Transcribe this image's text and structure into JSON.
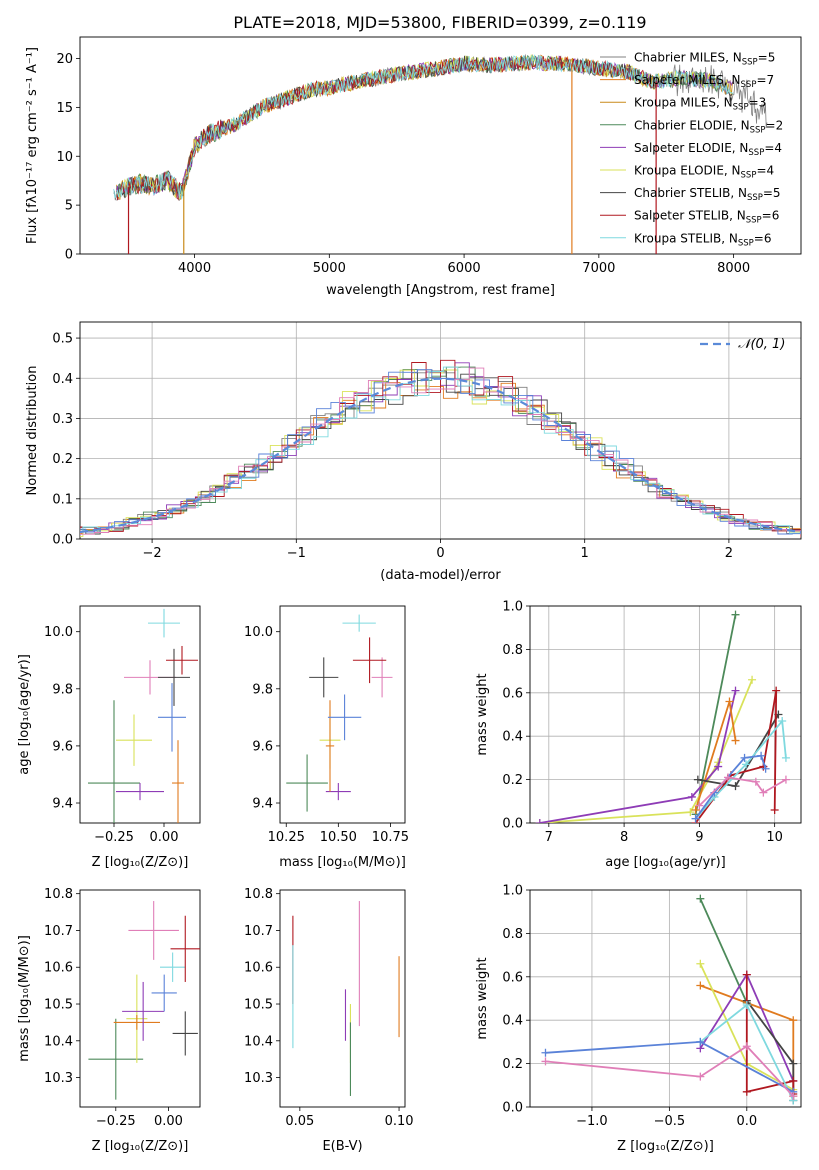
{
  "title": "PLATE=2018, MJD=53800, FIBERID=0399, z=0.119",
  "colors": {
    "Chabrier MILES": "#808080",
    "Salpeter MILES": "#e07b1f",
    "Kroupa MILES": "#c98a1a",
    "Chabrier ELODIE": "#4d8a5a",
    "Salpeter ELODIE": "#8e3cb6",
    "Kroupa ELODIE": "#d9e25a",
    "Chabrier STELIB": "#444444",
    "Salpeter STELIB": "#b01820",
    "Kroupa STELIB": "#7fd9df",
    "blue": "#5a82d8",
    "pink": "#e07fb8",
    "gaussian": "#5a8ad8",
    "grid": "#b0b0b0"
  },
  "chart_data": [
    {
      "type": "line",
      "xlabel": "wavelength [Angstrom, rest frame]",
      "ylabel": "Flux [fλ10⁻¹⁷ erg cm⁻² s⁻¹ A⁻¹]",
      "xlim": [
        3150,
        8500
      ],
      "ylim": [
        0,
        22.2
      ],
      "xticks": [
        4000,
        5000,
        6000,
        7000,
        8000
      ],
      "yticks": [
        0,
        5,
        10,
        15,
        20
      ],
      "grid": false,
      "legend_position": "right",
      "legend": [
        {
          "label": "Chabrier MILES, N",
          "sub": "SSP",
          "suffix": "=5"
        },
        {
          "label": "Salpeter MILES, N",
          "sub": "SSP",
          "suffix": "=7"
        },
        {
          "label": "Kroupa MILES, N",
          "sub": "SSP",
          "suffix": "=3"
        },
        {
          "label": "Chabrier ELODIE, N",
          "sub": "SSP",
          "suffix": "=2"
        },
        {
          "label": "Salpeter ELODIE, N",
          "sub": "SSP",
          "suffix": "=4"
        },
        {
          "label": "Kroupa ELODIE, N",
          "sub": "SSP",
          "suffix": "=4"
        },
        {
          "label": "Chabrier STELIB, N",
          "sub": "SSP",
          "suffix": "=5"
        },
        {
          "label": "Salpeter STELIB, N",
          "sub": "SSP",
          "suffix": "=6"
        },
        {
          "label": "Kroupa STELIB, N",
          "sub": "SSP",
          "suffix": "=6"
        }
      ],
      "spectrum_shape": {
        "x": [
          3400,
          3500,
          3600,
          3700,
          3800,
          3900,
          3950,
          4000,
          4100,
          4200,
          4300,
          4500,
          4700,
          4860,
          5000,
          5200,
          5500,
          5800,
          6000,
          6200,
          6500,
          6800,
          7000,
          7200,
          7400,
          7600,
          7800,
          8000,
          8100,
          8250
        ],
        "y": [
          6.2,
          6.8,
          7.2,
          7.0,
          7.6,
          6.2,
          8.5,
          11.0,
          12.2,
          12.8,
          13.2,
          15.0,
          16.0,
          16.8,
          17.0,
          17.6,
          18.4,
          19.0,
          19.5,
          19.3,
          19.6,
          19.4,
          19.0,
          18.7,
          17.6,
          18.0,
          17.8,
          16.8,
          16.0,
          14.0
        ]
      }
    },
    {
      "type": "histogram",
      "xlabel": "(data-model)/error",
      "ylabel": "Normed distribution",
      "xlim": [
        -2.5,
        2.5
      ],
      "ylim": [
        0,
        0.54
      ],
      "xticks": [
        -2,
        -1,
        0,
        1,
        2
      ],
      "xtick_labels": [
        "−2",
        "−1",
        "0",
        "1",
        "2"
      ],
      "yticks": [
        0.0,
        0.1,
        0.2,
        0.3,
        0.4,
        0.5
      ],
      "grid": true,
      "bin_width": 0.1,
      "legend": "𝒩(0, 1)",
      "legend_position": "top-right"
    },
    {
      "type": "errorbar",
      "xlabel": "Z [log₁₀(Z/Z⊙)]",
      "ylabel": "age  [log₁₀(age/yr)]",
      "xlim": [
        -0.42,
        0.18
      ],
      "ylim": [
        9.33,
        10.09
      ],
      "xticks": [
        -0.25,
        0.0
      ],
      "xtick_labels": [
        "−0.25",
        "0.00"
      ],
      "yticks": [
        9.4,
        9.6,
        9.8,
        10.0
      ],
      "points": [
        {
          "model": "Chabrier ELODIE",
          "x": -0.25,
          "xerr": 0.13,
          "y": 9.47,
          "yerr": 0.29
        },
        {
          "model": "Kroupa ELODIE",
          "x": -0.15,
          "xerr": 0.09,
          "y": 9.62,
          "yerr": 0.09
        },
        {
          "model": "Salpeter ELODIE",
          "x": -0.12,
          "xerr": 0.12,
          "y": 9.44,
          "yerr": 0.03
        },
        {
          "model": "pink",
          "x": -0.07,
          "xerr": 0.13,
          "y": 9.84,
          "yerr": 0.06
        },
        {
          "model": "Kroupa STELIB",
          "x": 0.0,
          "xerr": 0.08,
          "y": 10.03,
          "yerr": 0.05
        },
        {
          "model": "blue",
          "x": 0.04,
          "xerr": 0.07,
          "y": 9.7,
          "yerr": 0.12
        },
        {
          "model": "Salpeter MILES",
          "x": 0.07,
          "xerr": 0.03,
          "y": 9.47,
          "yerr": 0.15
        },
        {
          "model": "Chabrier STELIB",
          "x": 0.05,
          "xerr": 0.08,
          "y": 9.84,
          "yerr": 0.1
        },
        {
          "model": "Salpeter STELIB",
          "x": 0.09,
          "xerr": 0.08,
          "y": 9.9,
          "yerr": 0.05
        }
      ]
    },
    {
      "type": "errorbar",
      "xlabel": "mass [log₁₀(M/M⊙)]",
      "ylabel": "",
      "xlim": [
        10.22,
        10.82
      ],
      "ylim": [
        9.33,
        10.09
      ],
      "xticks": [
        10.25,
        10.5,
        10.75
      ],
      "xtick_labels": [
        "10.25",
        "10.50",
        "10.75"
      ],
      "yticks": [
        9.4,
        9.6,
        9.8,
        10.0
      ],
      "points": [
        {
          "model": "Chabrier ELODIE",
          "x": 10.35,
          "xerr": 0.1,
          "y": 9.47,
          "yerr": 0.1
        },
        {
          "model": "Kroupa ELODIE",
          "x": 10.46,
          "xerr": 0.05,
          "y": 9.62,
          "yerr": 0.1
        },
        {
          "model": "Salpeter ELODIE",
          "x": 10.5,
          "xerr": 0.06,
          "y": 9.44,
          "yerr": 0.03
        },
        {
          "model": "Salpeter MILES",
          "x": 10.46,
          "xerr": 0.02,
          "y": 9.6,
          "yerr": 0.16
        },
        {
          "model": "pink",
          "x": 10.71,
          "xerr": 0.05,
          "y": 9.84,
          "yerr": 0.07
        },
        {
          "model": "Kroupa STELIB",
          "x": 10.6,
          "xerr": 0.08,
          "y": 10.03,
          "yerr": 0.03
        },
        {
          "model": "blue",
          "x": 10.53,
          "xerr": 0.08,
          "y": 9.7,
          "yerr": 0.08
        },
        {
          "model": "Chabrier STELIB",
          "x": 10.43,
          "xerr": 0.07,
          "y": 9.84,
          "yerr": 0.07
        },
        {
          "model": "Salpeter STELIB",
          "x": 10.65,
          "xerr": 0.08,
          "y": 9.9,
          "yerr": 0.08
        }
      ]
    },
    {
      "type": "line",
      "xlabel": "age  [log₁₀(age/yr)]",
      "ylabel": "mass weight",
      "xlim": [
        6.75,
        10.35
      ],
      "ylim": [
        0,
        1
      ],
      "xticks": [
        7,
        8,
        9,
        10
      ],
      "yticks": [
        0.0,
        0.2,
        0.4,
        0.6,
        0.8,
        1.0
      ],
      "grid": true,
      "series": [
        {
          "model": "Chabrier ELODIE",
          "x": [
            8.95,
            9.48
          ],
          "y": [
            0.04,
            0.96
          ]
        },
        {
          "model": "Kroupa ELODIE",
          "x": [
            6.88,
            8.88,
            9.25,
            9.7
          ],
          "y": [
            0.0,
            0.05,
            0.28,
            0.66
          ]
        },
        {
          "model": "Salpeter ELODIE",
          "x": [
            6.88,
            8.9,
            9.25,
            9.48
          ],
          "y": [
            0.0,
            0.12,
            0.26,
            0.61
          ]
        },
        {
          "model": "Salpeter MILES",
          "x": [
            8.95,
            9.4,
            9.48
          ],
          "y": [
            0.06,
            0.56,
            0.38
          ]
        },
        {
          "model": "Chabrier STELIB",
          "x": [
            8.98,
            9.48,
            10.05
          ],
          "y": [
            0.2,
            0.17,
            0.5
          ]
        },
        {
          "model": "Salpeter STELIB",
          "x": [
            8.95,
            9.42,
            9.85,
            10.02,
            10.0
          ],
          "y": [
            0.0,
            0.22,
            0.26,
            0.61,
            0.06
          ]
        },
        {
          "model": "Kroupa STELIB",
          "x": [
            8.95,
            9.2,
            9.62,
            10.1,
            10.15
          ],
          "y": [
            0.02,
            0.12,
            0.27,
            0.47,
            0.3
          ]
        },
        {
          "model": "blue",
          "x": [
            8.95,
            9.2,
            9.6,
            9.82,
            9.88
          ],
          "y": [
            0.02,
            0.14,
            0.3,
            0.31,
            0.25
          ]
        },
        {
          "model": "pink",
          "x": [
            9.0,
            9.38,
            9.75,
            9.85,
            10.15
          ],
          "y": [
            0.08,
            0.21,
            0.19,
            0.14,
            0.2
          ]
        }
      ]
    },
    {
      "type": "errorbar",
      "xlabel": "Z [log₁₀(Z/Z⊙)]",
      "ylabel": "mass [log₁₀(M/M⊙)]",
      "xlim": [
        -0.42,
        0.15
      ],
      "ylim": [
        10.22,
        10.81
      ],
      "xticks": [
        -0.25,
        0.0
      ],
      "xtick_labels": [
        "−0.25",
        "0.00"
      ],
      "yticks": [
        10.3,
        10.4,
        10.5,
        10.6,
        10.7,
        10.8
      ],
      "points": [
        {
          "model": "Chabrier ELODIE",
          "x": -0.25,
          "xerr": 0.13,
          "y": 10.35,
          "yerr": 0.11
        },
        {
          "model": "Kroupa ELODIE",
          "x": -0.15,
          "xerr": 0.05,
          "y": 10.46,
          "yerr": 0.12
        },
        {
          "model": "Salpeter MILES",
          "x": -0.15,
          "xerr": 0.11,
          "y": 10.45,
          "yerr": 0.02
        },
        {
          "model": "Salpeter ELODIE",
          "x": -0.12,
          "xerr": 0.1,
          "y": 10.48,
          "yerr": 0.08
        },
        {
          "model": "pink",
          "x": -0.07,
          "xerr": 0.12,
          "y": 10.7,
          "yerr": 0.08
        },
        {
          "model": "blue",
          "x": -0.02,
          "xerr": 0.06,
          "y": 10.53,
          "yerr": 0.05
        },
        {
          "model": "Kroupa STELIB",
          "x": 0.02,
          "xerr": 0.06,
          "y": 10.6,
          "yerr": 0.04
        },
        {
          "model": "Chabrier STELIB",
          "x": 0.08,
          "xerr": 0.06,
          "y": 10.42,
          "yerr": 0.06
        },
        {
          "model": "Salpeter STELIB",
          "x": 0.08,
          "xerr": 0.07,
          "y": 10.65,
          "yerr": 0.09
        }
      ]
    },
    {
      "type": "errorbar",
      "xlabel": "E(B-V)",
      "ylabel": "",
      "xlim": [
        0.04,
        0.103
      ],
      "ylim": [
        10.22,
        10.81
      ],
      "xticks": [
        0.05,
        0.1
      ],
      "xtick_labels": [
        "0.05",
        "0.10"
      ],
      "yticks": [
        10.3,
        10.4,
        10.5,
        10.6,
        10.7,
        10.8
      ],
      "points": [
        {
          "model": "Salpeter STELIB",
          "x": 0.0465,
          "y": 10.62,
          "yerr": 0.12
        },
        {
          "model": "Kroupa STELIB",
          "x": 0.0465,
          "y": 10.52,
          "yerr": 0.14
        },
        {
          "model": "Salpeter ELODIE",
          "x": 0.073,
          "y": 10.47,
          "yerr": 0.07
        },
        {
          "model": "Kroupa ELODIE",
          "x": 0.0755,
          "y": 10.42,
          "yerr": 0.08
        },
        {
          "model": "Chabrier ELODIE",
          "x": 0.0755,
          "y": 10.35,
          "yerr": 0.1
        },
        {
          "model": "pink",
          "x": 0.08,
          "y": 10.61,
          "yerr": 0.17
        },
        {
          "model": "Salpeter MILES",
          "x": 0.1,
          "y": 10.52,
          "yerr": 0.11
        }
      ]
    },
    {
      "type": "line",
      "xlabel": "Z [log₁₀(Z/Z⊙)]",
      "ylabel": "mass weight",
      "xlim": [
        -1.4,
        0.35
      ],
      "ylim": [
        0,
        1
      ],
      "xticks": [
        -1.0,
        -0.5,
        0.0
      ],
      "xtick_labels": [
        "−1.0",
        "−0.5",
        "0.0"
      ],
      "yticks": [
        0.0,
        0.2,
        0.4,
        0.6,
        0.8,
        1.0
      ],
      "grid": true,
      "series": [
        {
          "model": "Chabrier ELODIE",
          "x": [
            -0.3,
            0.0
          ],
          "y": [
            0.96,
            0.48
          ]
        },
        {
          "model": "Salpeter MILES",
          "x": [
            -0.3,
            0.3,
            0.3
          ],
          "y": [
            0.56,
            0.4,
            0.05
          ]
        },
        {
          "model": "Kroupa ELODIE",
          "x": [
            -0.3,
            0.0,
            0.3
          ],
          "y": [
            0.66,
            0.2,
            0.08
          ]
        },
        {
          "model": "Salpeter ELODIE",
          "x": [
            -0.3,
            0.0,
            0.3
          ],
          "y": [
            0.27,
            0.61,
            0.12
          ]
        },
        {
          "model": "Chabrier STELIB",
          "x": [
            0.0,
            0.3,
            0.3
          ],
          "y": [
            0.49,
            0.2,
            0.03
          ]
        },
        {
          "model": "Salpeter STELIB",
          "x": [
            0.0,
            0.0,
            0.3,
            0.3
          ],
          "y": [
            0.61,
            0.07,
            0.12,
            0.06
          ]
        },
        {
          "model": "Kroupa STELIB",
          "x": [
            -0.3,
            0.0,
            0.3
          ],
          "y": [
            0.3,
            0.47,
            0.03
          ]
        },
        {
          "model": "blue",
          "x": [
            -1.3,
            -0.3,
            0.3
          ],
          "y": [
            0.25,
            0.3,
            0.07
          ]
        },
        {
          "model": "pink",
          "x": [
            -1.3,
            -0.3,
            0.0,
            0.3
          ],
          "y": [
            0.21,
            0.14,
            0.28,
            0.05
          ]
        }
      ]
    }
  ]
}
